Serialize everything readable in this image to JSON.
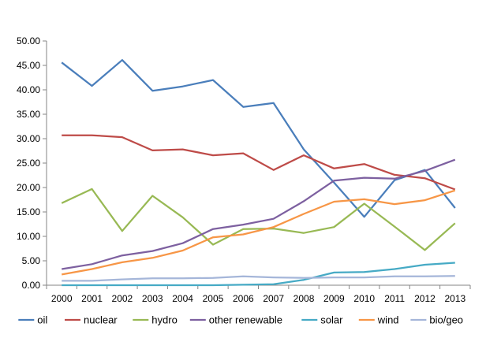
{
  "chart_data": {
    "type": "line",
    "title": "",
    "xlabel": "",
    "ylabel": "",
    "ylim": [
      0,
      50
    ],
    "yticks": [
      "0.00",
      "5.00",
      "10.00",
      "15.00",
      "20.00",
      "25.00",
      "30.00",
      "35.00",
      "40.00",
      "45.00",
      "50.00"
    ],
    "categories": [
      "2000",
      "2001",
      "2002",
      "2003",
      "2004",
      "2005",
      "2006",
      "2007",
      "2008",
      "2009",
      "2010",
      "2011",
      "2012",
      "2013"
    ],
    "grid": false,
    "legend_position": "bottom",
    "series": [
      {
        "name": "oil",
        "color": "#4a7ebb",
        "values": [
          45.6,
          40.8,
          46.1,
          39.8,
          40.7,
          42.0,
          36.5,
          37.3,
          27.8,
          21.0,
          14.0,
          21.5,
          23.6,
          15.8
        ]
      },
      {
        "name": "nuclear",
        "color": "#be4b48",
        "values": [
          30.7,
          30.7,
          30.3,
          27.6,
          27.8,
          26.6,
          27.0,
          23.6,
          26.6,
          23.9,
          24.8,
          22.6,
          21.9,
          19.6
        ]
      },
      {
        "name": "hydro",
        "color": "#98b954",
        "values": [
          16.8,
          19.7,
          11.1,
          18.3,
          13.9,
          8.3,
          11.5,
          11.6,
          10.7,
          11.9,
          16.7,
          12.0,
          7.2,
          12.7
        ]
      },
      {
        "name": "other renewable",
        "color": "#7d60a0",
        "values": [
          3.3,
          4.3,
          6.1,
          7.0,
          8.6,
          11.5,
          12.4,
          13.6,
          17.2,
          21.4,
          22.0,
          21.8,
          23.4,
          25.7
        ]
      },
      {
        "name": "solar",
        "color": "#46aac5",
        "values": [
          0.0,
          0.0,
          0.0,
          0.0,
          0.0,
          0.0,
          0.1,
          0.2,
          1.1,
          2.6,
          2.7,
          3.3,
          4.2,
          4.6
        ]
      },
      {
        "name": "wind",
        "color": "#f79646",
        "values": [
          2.2,
          3.3,
          4.7,
          5.6,
          7.1,
          9.8,
          10.4,
          11.9,
          14.6,
          17.1,
          17.6,
          16.6,
          17.4,
          19.4
        ]
      },
      {
        "name": "bio/geo",
        "color": "#a5b6d9",
        "values": [
          0.9,
          0.9,
          1.2,
          1.4,
          1.4,
          1.5,
          1.8,
          1.6,
          1.5,
          1.6,
          1.6,
          1.8,
          1.8,
          1.9
        ]
      }
    ]
  }
}
